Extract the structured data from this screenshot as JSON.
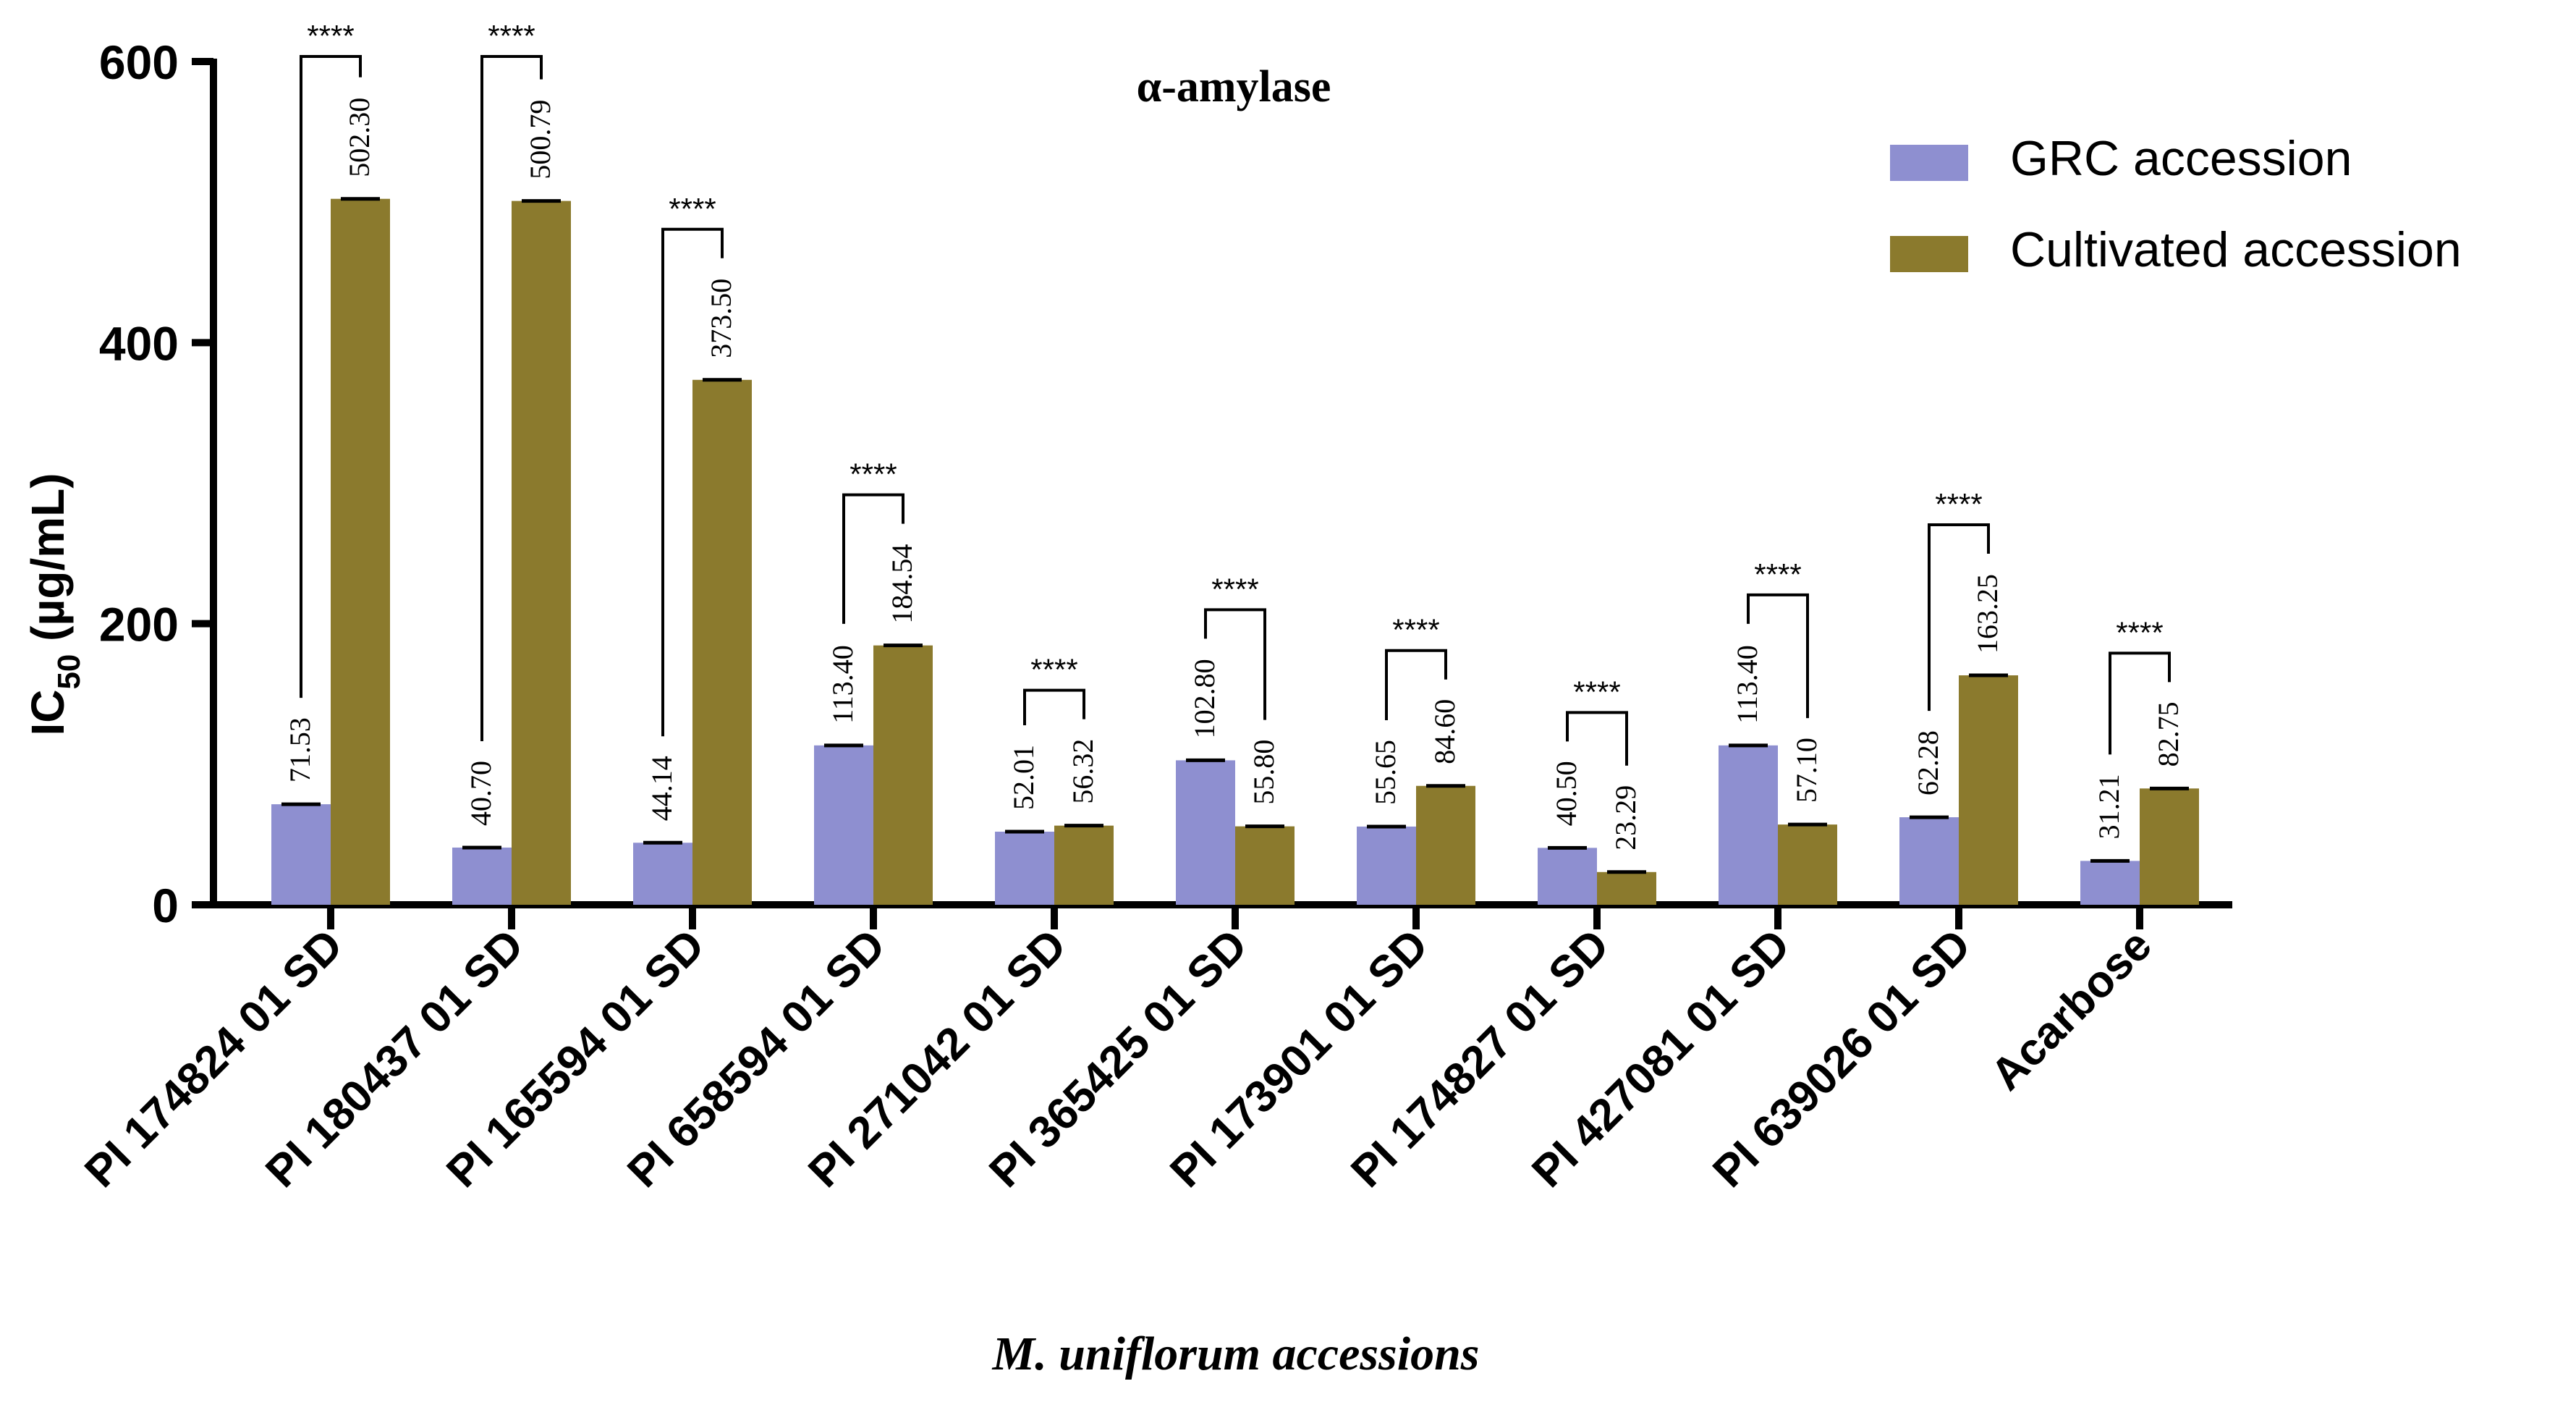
{
  "chart_data": {
    "type": "bar",
    "title": "α-amylase",
    "xlabel": "M. uniflorum accessions",
    "ylabel_main": "IC",
    "ylabel_sub": "50",
    "ylabel_unit": " (µg/mL)",
    "ylim": [
      0,
      600
    ],
    "yticks": [
      0,
      200,
      400,
      600
    ],
    "categories": [
      "PI 174824 01 SD",
      "PI 180437 01 SD",
      "PI 165594 01 SD",
      "PI 658594 01 SD",
      "PI 271042 01 SD",
      "PI 365425 01 SD",
      "PI 173901 01 SD",
      "PI 174827 01 SD",
      "PI 427081 01 SD",
      "PI 639026 01 SD",
      "Acarbose"
    ],
    "series": [
      {
        "name": "GRC accession",
        "color": "#8e8fd0",
        "values": [
          71.53,
          40.7,
          44.14,
          113.4,
          52.01,
          102.8,
          55.65,
          40.5,
          113.4,
          62.28,
          31.21
        ],
        "labels": [
          "71.53",
          "40.70",
          "44.14",
          "113.40",
          "52.01",
          "102.80",
          "55.65",
          "40.50",
          "113.40",
          "62.28",
          "31.21"
        ]
      },
      {
        "name": "Cultivated accession",
        "color": "#8b7a2d",
        "values": [
          502.3,
          500.79,
          373.5,
          184.54,
          56.32,
          55.8,
          84.6,
          23.29,
          57.1,
          163.25,
          82.75
        ],
        "labels": [
          "502.30",
          "500.79",
          "373.50",
          "184.54",
          "56.32",
          "55.80",
          "84.60",
          "23.29",
          "57.10",
          "163.25",
          "82.75"
        ]
      }
    ],
    "significance": [
      "****",
      "****",
      "****",
      "****",
      "****",
      "****",
      "****",
      "****",
      "****",
      "****",
      "****"
    ],
    "legend_position": "top-right"
  }
}
